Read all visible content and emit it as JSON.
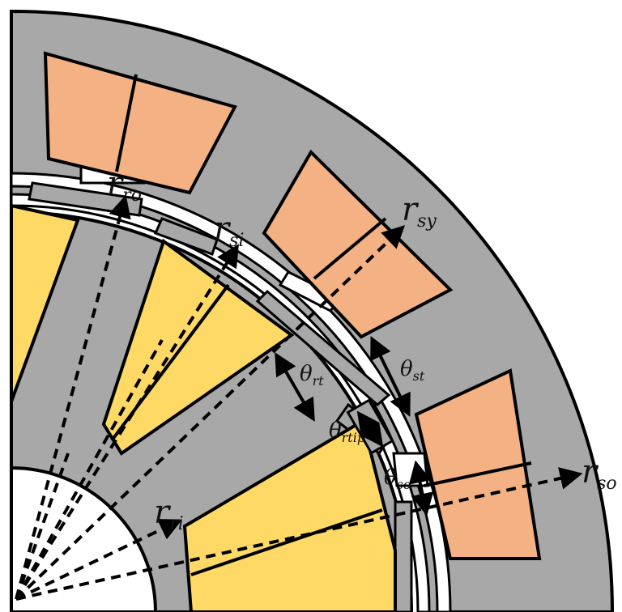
{
  "colors": {
    "background": "#ffffff",
    "iron": "#a8a8a8",
    "stator_coil": "#f4b183",
    "rotor_coil": "#ffd966",
    "outline": "#000000",
    "dimension": "#000000"
  },
  "labels": {
    "r_ro": {
      "base": "r",
      "sub": "ro"
    },
    "r_si": {
      "base": "r",
      "sub": "si"
    },
    "r_sy": {
      "base": "r",
      "sub": "sy"
    },
    "r_so": {
      "base": "r",
      "sub": "so"
    },
    "r_ri": {
      "base": "r",
      "sub": "ri"
    },
    "theta_rt": {
      "base": "θ",
      "sub": "rt"
    },
    "theta_st": {
      "base": "θ",
      "sub": "st"
    },
    "theta_rtip": {
      "base": "θ",
      "sub": "rtip"
    },
    "theta_so": {
      "base": "θ",
      "sub": "so"
    }
  }
}
